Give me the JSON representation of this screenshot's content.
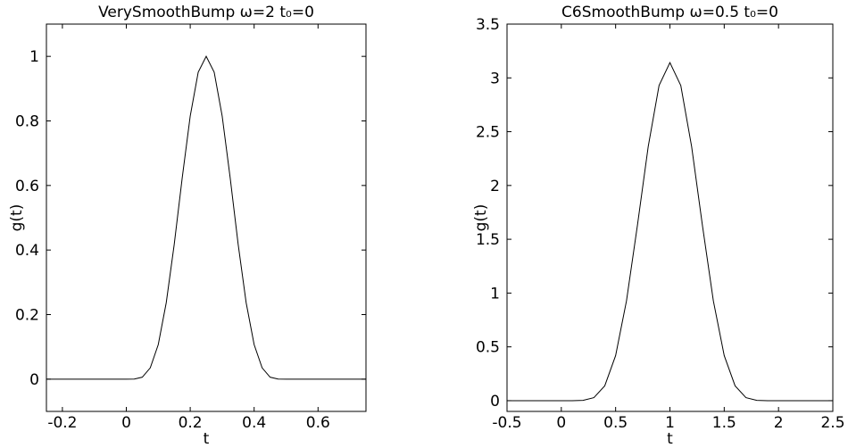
{
  "chart_data": [
    {
      "type": "line",
      "title": "VerySmoothBump ω=2 t₀=0",
      "xlabel": "t",
      "ylabel": "g(t)",
      "xlim": [
        -0.25,
        0.75
      ],
      "ylim": [
        -0.1,
        1.1
      ],
      "xticks": [
        -0.2,
        0,
        0.2,
        0.4,
        0.6
      ],
      "yticks": [
        0,
        0.2,
        0.4,
        0.6,
        0.8,
        1
      ],
      "series": [
        {
          "name": "g(t)",
          "color": "#000000",
          "x": [
            -0.25,
            -0.225,
            -0.2,
            -0.175,
            -0.15,
            -0.125,
            -0.1,
            -0.075,
            -0.05,
            -0.025,
            0,
            0.025,
            0.05,
            0.075,
            0.1,
            0.125,
            0.15,
            0.175,
            0.2,
            0.225,
            0.25,
            0.275,
            0.3,
            0.325,
            0.35,
            0.375,
            0.4,
            0.425,
            0.45,
            0.475,
            0.5,
            0.525,
            0.55,
            0.575,
            0.6,
            0.625,
            0.65,
            0.675,
            0.7,
            0.725,
            0.75
          ],
          "values": [
            0,
            0,
            0,
            0,
            0,
            0,
            0,
            0,
            0,
            0,
            0,
            0.0002,
            0.006,
            0.035,
            0.107,
            0.237,
            0.418,
            0.624,
            0.815,
            0.951,
            1,
            0.951,
            0.815,
            0.624,
            0.418,
            0.237,
            0.107,
            0.035,
            0.006,
            0.0002,
            0,
            0,
            0,
            0,
            0,
            0,
            0,
            0,
            0,
            0,
            0
          ]
        }
      ]
    },
    {
      "type": "line",
      "title": "C6SmoothBump ω=0.5 t₀=0",
      "xlabel": "t",
      "ylabel": "g(t)",
      "xlim": [
        -0.5,
        2.5
      ],
      "ylim": [
        -0.1,
        3.5
      ],
      "xticks": [
        -0.5,
        0,
        0.5,
        1,
        1.5,
        2,
        2.5
      ],
      "yticks": [
        0,
        0.5,
        1,
        1.5,
        2,
        2.5,
        3,
        3.5
      ],
      "series": [
        {
          "name": "g(t)",
          "color": "#000000",
          "x": [
            -0.5,
            -0.4,
            -0.3,
            -0.2,
            -0.1,
            0,
            0.1,
            0.2,
            0.3,
            0.4,
            0.5,
            0.6,
            0.7,
            0.8,
            0.9,
            1,
            1.1,
            1.2,
            1.3,
            1.4,
            1.5,
            1.6,
            1.7,
            1.8,
            1.9,
            2,
            2.1,
            2.2,
            2.3,
            2.4,
            2.5
          ],
          "values": [
            0,
            0,
            0,
            0,
            0,
            0,
            0,
            0.0025,
            0.028,
            0.138,
            0.419,
            0.927,
            1.624,
            2.361,
            2.929,
            3.142,
            2.929,
            2.361,
            1.624,
            0.927,
            0.419,
            0.138,
            0.028,
            0.0025,
            0,
            0,
            0,
            0,
            0,
            0,
            0
          ]
        }
      ]
    }
  ]
}
